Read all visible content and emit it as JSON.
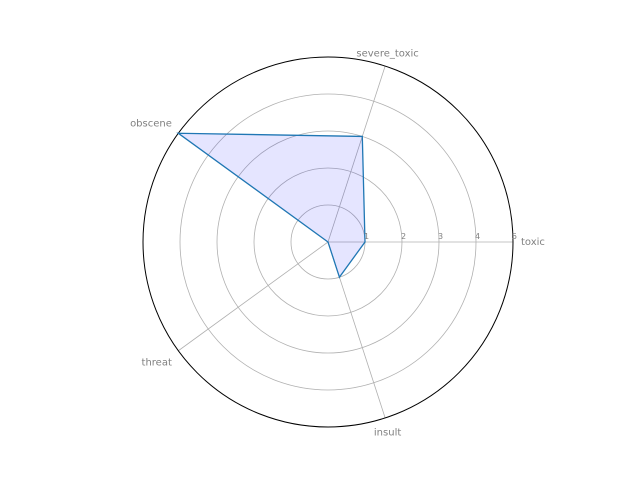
{
  "chart_data": {
    "type": "radar",
    "categories": [
      "toxic",
      "severe_toxic",
      "obscene",
      "threat",
      "insult"
    ],
    "series": [
      {
        "values": [
          1,
          3,
          5,
          0,
          1
        ],
        "line_color": "#1f77b4",
        "fill_color": "#0000ff",
        "fill_opacity": 0.1
      }
    ],
    "rlim": [
      0,
      5
    ],
    "r_ticks": [
      "1",
      "2",
      "3",
      "4",
      "5"
    ],
    "grid": true,
    "colors": {
      "grid": "#b0b0b0",
      "frame": "#000000",
      "text": "#808080"
    }
  }
}
